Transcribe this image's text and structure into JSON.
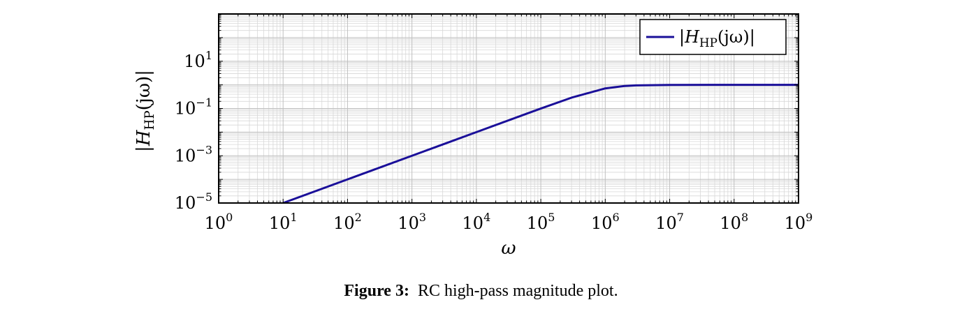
{
  "chart_data": {
    "type": "line",
    "title": "",
    "xlabel": "ω",
    "ylabel_parts": {
      "lead": "|",
      "sym": "H",
      "sub": "HP",
      "arg": "(jω)",
      "trail": "|"
    },
    "xscale": "log",
    "yscale": "log",
    "xlim": [
      1,
      1000000000
    ],
    "ylim": [
      1e-05,
      1000
    ],
    "xticks": [
      {
        "base": "10",
        "exp": "0"
      },
      {
        "base": "10",
        "exp": "1"
      },
      {
        "base": "10",
        "exp": "2"
      },
      {
        "base": "10",
        "exp": "3"
      },
      {
        "base": "10",
        "exp": "4"
      },
      {
        "base": "10",
        "exp": "5"
      },
      {
        "base": "10",
        "exp": "6"
      },
      {
        "base": "10",
        "exp": "7"
      },
      {
        "base": "10",
        "exp": "8"
      },
      {
        "base": "10",
        "exp": "9"
      }
    ],
    "yticks": [
      {
        "value": 1e-05,
        "base": "10",
        "exp": "−5"
      },
      {
        "value": 0.001,
        "base": "10",
        "exp": "−3"
      },
      {
        "value": 0.1,
        "base": "10",
        "exp": "−1"
      },
      {
        "value": 10,
        "base": "10",
        "exp": "1"
      }
    ],
    "grid": true,
    "legend_position": "top-right",
    "series": [
      {
        "legend_parts": {
          "lead": "|",
          "sym": "H",
          "sub": "HP",
          "arg": "(jω)",
          "trail": "|"
        },
        "color": "#1a0f99",
        "x": [
          10,
          100,
          1000,
          10000,
          100000,
          300000,
          1000000,
          2000000,
          3000000,
          10000000,
          100000000,
          1000000000
        ],
        "y": [
          1e-05,
          0.0001,
          0.001,
          0.01,
          0.0995,
          0.287,
          0.707,
          0.894,
          0.949,
          0.995,
          1.0,
          1.0
        ]
      }
    ]
  },
  "caption": {
    "label": "Figure 3:",
    "text": "RC high-pass magnitude plot."
  }
}
